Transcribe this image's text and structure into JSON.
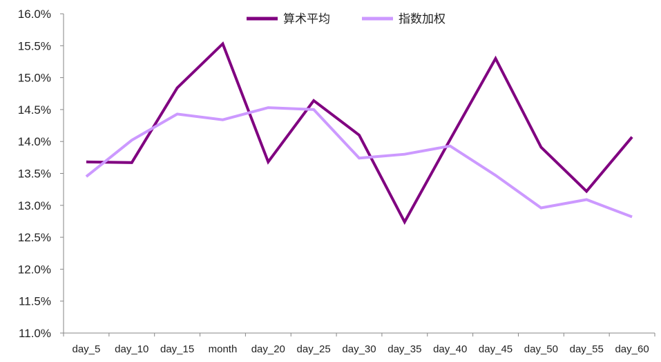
{
  "chart_data": {
    "type": "line",
    "categories": [
      "day_5",
      "day_10",
      "day_15",
      "month",
      "day_20",
      "day_25",
      "day_30",
      "day_35",
      "day_40",
      "day_45",
      "day_50",
      "day_55",
      "day_60"
    ],
    "series": [
      {
        "name": "算术平均",
        "color": "#800080",
        "values": [
          13.68,
          13.67,
          14.84,
          15.53,
          13.68,
          14.64,
          14.1,
          12.74,
          14.03,
          15.3,
          13.91,
          13.22,
          14.07
        ]
      },
      {
        "name": "指数加权",
        "color": "#cc99ff",
        "values": [
          13.45,
          14.02,
          14.43,
          14.34,
          14.53,
          14.5,
          13.74,
          13.8,
          13.93,
          13.47,
          12.96,
          13.09,
          12.82
        ]
      }
    ],
    "y_unit": "%",
    "ylim": [
      11.0,
      16.0
    ],
    "y_ticks": [
      "11.0%",
      "11.5%",
      "12.0%",
      "12.5%",
      "13.0%",
      "13.5%",
      "14.0%",
      "14.5%",
      "15.0%",
      "15.5%",
      "16.0%"
    ],
    "grid": false,
    "legend_position": "top-center"
  }
}
